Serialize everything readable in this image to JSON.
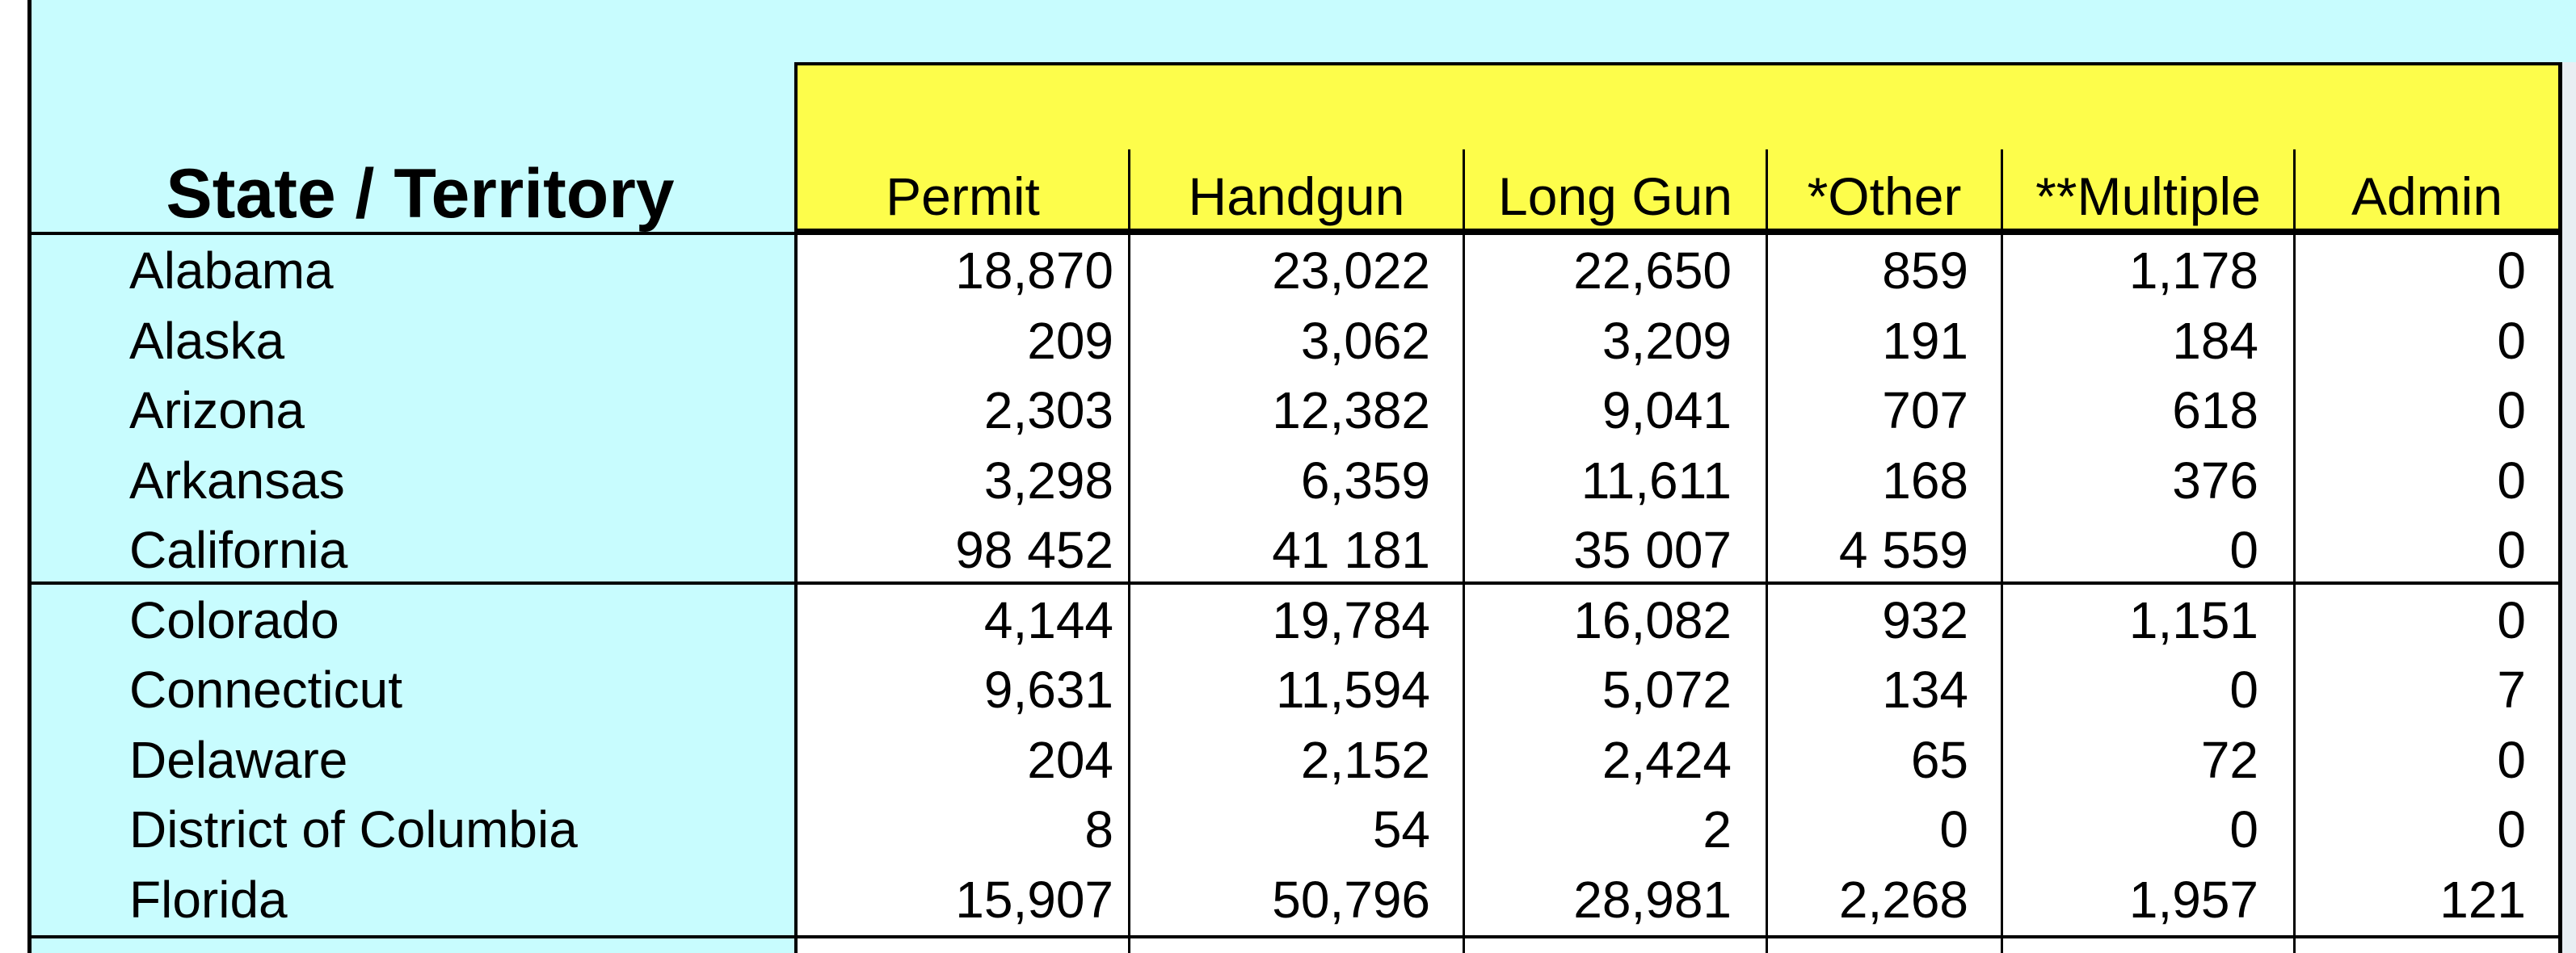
{
  "header": {
    "state_label": "State / Territory",
    "columns": [
      "Permit",
      "Handgun",
      "Long Gun",
      "*Other",
      "**Multiple",
      "Admin"
    ]
  },
  "rows": [
    {
      "state": "Alabama",
      "values": [
        "18,870",
        "23,022",
        "22,650",
        "859",
        "1,178",
        "0"
      ]
    },
    {
      "state": "Alaska",
      "values": [
        "209",
        "3,062",
        "3,209",
        "191",
        "184",
        "0"
      ]
    },
    {
      "state": "Arizona",
      "values": [
        "2,303",
        "12,382",
        "9,041",
        "707",
        "618",
        "0"
      ]
    },
    {
      "state": "Arkansas",
      "values": [
        "3,298",
        "6,359",
        "11,611",
        "168",
        "376",
        "0"
      ]
    },
    {
      "state": "California",
      "values": [
        "98 452",
        "41 181",
        "35 007",
        "4 559",
        "0",
        "0"
      ]
    },
    {
      "state": "Colorado",
      "values": [
        "4,144",
        "19,784",
        "16,082",
        "932",
        "1,151",
        "0"
      ]
    },
    {
      "state": "Connecticut",
      "values": [
        "9,631",
        "11,594",
        "5,072",
        "134",
        "0",
        "7"
      ]
    },
    {
      "state": "Delaware",
      "values": [
        "204",
        "2,152",
        "2,424",
        "65",
        "72",
        "0"
      ]
    },
    {
      "state": "District of Columbia",
      "values": [
        "8",
        "54",
        "2",
        "0",
        "0",
        "0"
      ]
    },
    {
      "state": "Florida",
      "values": [
        "15,907",
        "50,796",
        "28,981",
        "2,268",
        "1,957",
        "121"
      ]
    }
  ]
}
